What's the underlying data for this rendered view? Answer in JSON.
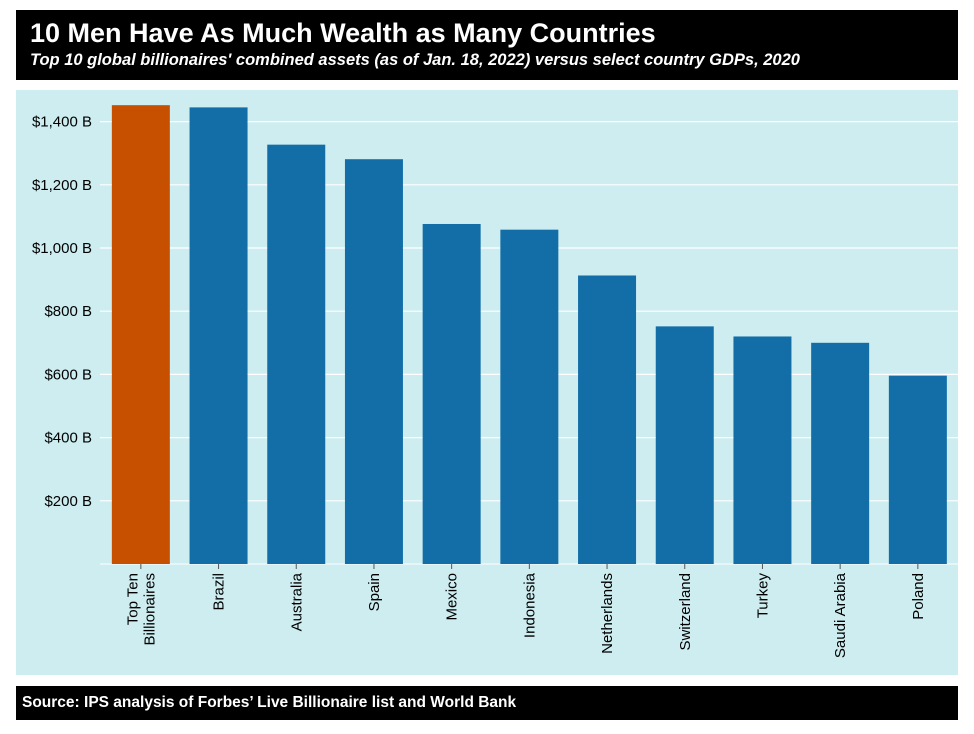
{
  "header": {
    "title": "10 Men Have As Much Wealth as Many Countries",
    "subtitle": "Top 10 global billionaires' combined assets (as of Jan. 18, 2022) versus select country GDPs, 2020"
  },
  "footer": {
    "source": "Source: IPS analysis of Forbes’ Live Billionaire list and World Bank"
  },
  "colors": {
    "highlight": "#c75000",
    "bar": "#136ea8",
    "plot_background": "#cdedf0",
    "gridline": "#ffffff",
    "text": "#000000"
  },
  "chart_data": {
    "type": "bar",
    "title": "10 Men Have As Much Wealth as Many Countries",
    "subtitle": "Top 10 global billionaires' combined assets (as of Jan. 18, 2022) versus select country GDPs, 2020",
    "xlabel": "",
    "ylabel": "",
    "ylim": [
      0,
      1500
    ],
    "yticks": [
      200,
      400,
      600,
      800,
      1000,
      1200,
      1400
    ],
    "ytick_labels": [
      "$200 B",
      "$400 B",
      "$600 B",
      "$800 B",
      "$1,000 B",
      "$1,200 B",
      "$1,400 B"
    ],
    "grid": true,
    "categories": [
      [
        "Top Ten",
        "Billionaires"
      ],
      [
        "Brazil"
      ],
      [
        "Australia"
      ],
      [
        "Spain"
      ],
      [
        "Mexico"
      ],
      [
        "Indonesia"
      ],
      [
        "Netherlands"
      ],
      [
        "Switzerland"
      ],
      [
        "Turkey"
      ],
      [
        "Saudi Arabia"
      ],
      [
        "Poland"
      ]
    ],
    "values": [
      1452,
      1445,
      1327,
      1281,
      1076,
      1058,
      913,
      752,
      720,
      700,
      596
    ],
    "highlight_index": 0
  }
}
